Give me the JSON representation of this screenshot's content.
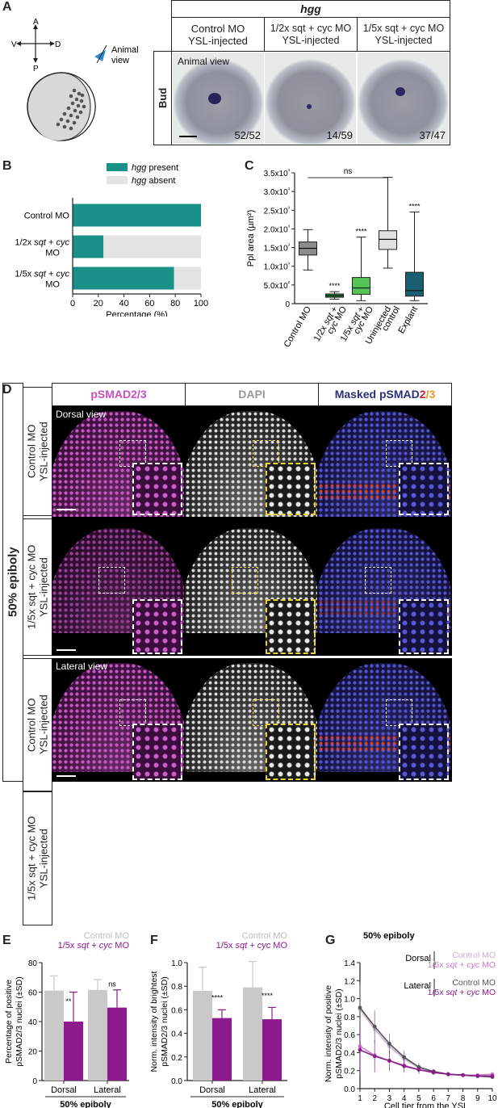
{
  "panel_letters": {
    "a": "A",
    "b": "B",
    "c": "C",
    "d": "D",
    "e": "E",
    "f": "F",
    "g": "G"
  },
  "panelA": {
    "axis": {
      "up": "A",
      "down": "P",
      "left": "V",
      "right": "D"
    },
    "animal_view_label": "Animal\nview",
    "header_gene": "hgg",
    "columns": [
      "Control MO\nYSL-injected",
      "1/2x sqt + cyc MO\nYSL-injected",
      "1/5x sqt + cyc MO\nYSL-injected"
    ],
    "row_label": "Bud",
    "photo_caption": "Animal view",
    "counts": [
      "52/52",
      "14/59",
      "37/47"
    ]
  },
  "panelB": {
    "legend": [
      "hgg present",
      "hgg absent"
    ],
    "colors": {
      "present": "#1a9188",
      "absent": "#e3e3e3"
    },
    "xlabel": "Percentage (%)",
    "chart_data": {
      "type": "bar",
      "orientation": "horizontal-stacked",
      "categories": [
        "Control MO",
        "1/2x sqt + cyc MO",
        "1/5x sqt + cyc MO"
      ],
      "series": [
        {
          "name": "hgg present",
          "values": [
            100,
            24,
            79
          ]
        },
        {
          "name": "hgg absent",
          "values": [
            0,
            76,
            21
          ]
        }
      ],
      "xlim": [
        0,
        100
      ],
      "xticks": [
        0,
        20,
        40,
        60,
        80,
        100
      ]
    }
  },
  "panelC": {
    "ylabel": "Ppl area (µm²)",
    "ns_label": "ns",
    "chart_data": {
      "type": "box",
      "categories": [
        "Control MO",
        "1/2x sqt + cyc MO",
        "1/5x sqt + cyc MO",
        "Uninjected control",
        "Explant"
      ],
      "colors": [
        "#8c8c8c",
        "#1f8a3a",
        "#55c455",
        "#e0e0e0",
        "#1a5e72"
      ],
      "boxes": [
        {
          "min": 900,
          "q1": 1300,
          "median": 1480,
          "q3": 1650,
          "max": 1980
        },
        {
          "min": 120,
          "q1": 170,
          "median": 210,
          "q3": 260,
          "max": 320
        },
        {
          "min": 80,
          "q1": 250,
          "median": 420,
          "q3": 700,
          "max": 1780
        },
        {
          "min": 950,
          "q1": 1450,
          "median": 1720,
          "q3": 1950,
          "max": 3380
        },
        {
          "min": 80,
          "q1": 200,
          "median": 350,
          "q3": 840,
          "max": 2450
        }
      ],
      "significance": [
        "",
        "****",
        "****",
        "",
        "****"
      ],
      "ylim": [
        0,
        3500
      ],
      "yticks": [
        "0",
        "5.0x10²",
        "1.0x10³",
        "1.5x10³",
        "2.0x10³",
        "2.5x10³",
        "3.0x10³",
        "3.5x10³"
      ]
    }
  },
  "panelD": {
    "headers": {
      "c1": "pSMAD2/3",
      "c2": "DAPI",
      "c3a": "Masked pSMAD",
      "c3b": "2",
      "c3c": "/3"
    },
    "side_label": "50% epiboly",
    "rows": [
      "Control MO\nYSL-injected",
      "1/5x sqt + cyc MO\nYSL-injected",
      "Control MO\nYSL-injected",
      "1/5x sqt + cyc MO\nYSL-injected"
    ],
    "view_labels": [
      "Dorsal view",
      "Lateral view"
    ]
  },
  "panelE": {
    "legend": [
      "Control MO",
      "1/5x sqt + cyc MO"
    ],
    "ylabel": "Percentage of positive\npSMAD2/3 nuclei (±SD)",
    "xlabel": "50% epiboly",
    "chart_data": {
      "type": "bar",
      "categories": [
        "Dorsal",
        "Lateral"
      ],
      "series": [
        {
          "name": "Control MO",
          "values": [
            61,
            61.5
          ],
          "sd": [
            10,
            7
          ]
        },
        {
          "name": "1/5x sqt + cyc MO",
          "values": [
            40,
            49.5
          ],
          "sd": [
            20,
            12
          ]
        }
      ],
      "significance": [
        "**",
        "ns"
      ],
      "ylim": [
        0,
        80
      ],
      "yticks": [
        0,
        20,
        40,
        60,
        80
      ]
    }
  },
  "panelF": {
    "legend": [
      "Control MO",
      "1/5x sqt + cyc MO"
    ],
    "ylabel": "Norm. intensity of brightest\npSMAD2/3 nuclei (±SD)",
    "xlabel": "50% epiboly",
    "chart_data": {
      "type": "bar",
      "categories": [
        "Dorsal",
        "Lateral"
      ],
      "series": [
        {
          "name": "Control MO",
          "values": [
            0.76,
            0.79
          ],
          "sd": [
            0.2,
            0.22
          ]
        },
        {
          "name": "1/5x sqt + cyc MO",
          "values": [
            0.53,
            0.52
          ],
          "sd": [
            0.07,
            0.1
          ]
        }
      ],
      "significance": [
        "****",
        "****"
      ],
      "ylim": [
        0,
        1.0
      ],
      "yticks": [
        "0.0",
        "0.2",
        "0.4",
        "0.6",
        "0.8",
        "1.0"
      ]
    }
  },
  "panelG": {
    "title": "50% epiboly",
    "ylabel": "Norm. intensity of positive\npSMAD2/3 nuclei (±SD)",
    "xlabel": "Cell tier from the YSL",
    "legend_groups": [
      {
        "group": "Dorsal",
        "items": [
          "Control MO",
          "1/5x sqt + cyc MO"
        ],
        "colors": [
          "#c9b0d4",
          "#c57bc7"
        ]
      },
      {
        "group": "Lateral",
        "items": [
          "Control MO",
          "1/5x sqt + cyc MO"
        ],
        "colors": [
          "#555555",
          "#8b1d8b"
        ]
      }
    ],
    "chart_data": {
      "type": "line",
      "x": [
        1,
        2,
        3,
        4,
        5,
        6,
        7,
        8,
        9,
        10
      ],
      "series": [
        {
          "name": "Dorsal Control MO",
          "values": [
            0.88,
            0.66,
            0.47,
            0.33,
            0.23,
            0.19,
            0.16,
            0.15,
            0.14,
            0.13
          ]
        },
        {
          "name": "Dorsal 1/5x sqt + cyc MO",
          "values": [
            0.47,
            0.37,
            0.31,
            0.26,
            0.21,
            0.18,
            0.16,
            0.15,
            0.15,
            0.16
          ]
        },
        {
          "name": "Lateral Control MO",
          "values": [
            0.9,
            0.69,
            0.5,
            0.35,
            0.24,
            0.19,
            0.16,
            0.15,
            0.14,
            0.13
          ]
        },
        {
          "name": "Lateral 1/5x sqt + cyc MO",
          "values": [
            0.43,
            0.36,
            0.31,
            0.25,
            0.21,
            0.18,
            0.16,
            0.15,
            0.14,
            0.14
          ]
        }
      ],
      "ylim": [
        0,
        1.4
      ],
      "yticks": [
        "0.0",
        "0.2",
        "0.4",
        "0.6",
        "0.8",
        "1.0",
        "1.2",
        "1.4"
      ],
      "xticks": [
        1,
        2,
        3,
        4,
        5,
        6,
        7,
        8,
        9,
        10
      ]
    }
  }
}
